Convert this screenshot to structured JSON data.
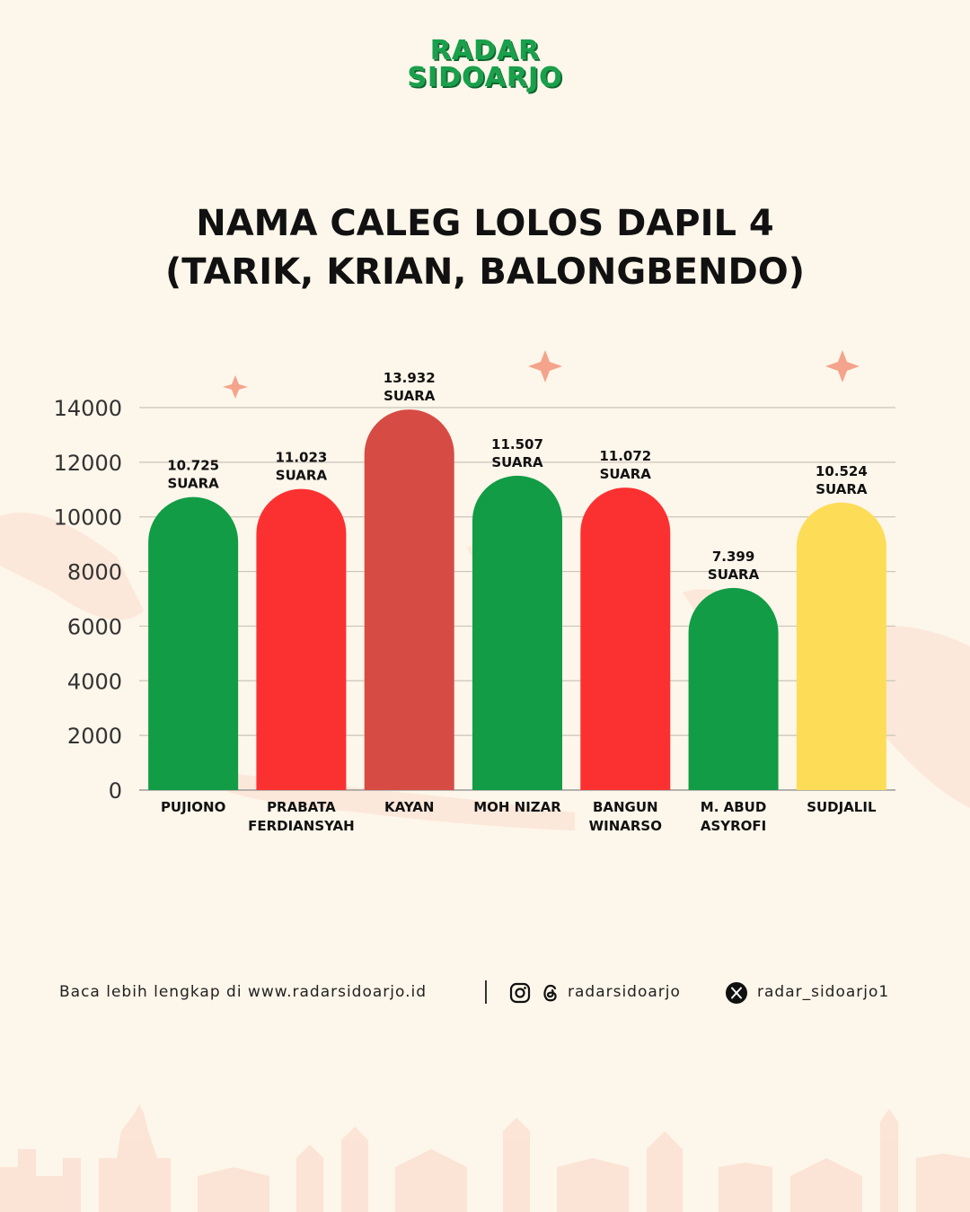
{
  "logo": {
    "line1": "RADAR",
    "line2": "SIDOARJO"
  },
  "title": {
    "line1": "NAMA CALEG LOLOS DAPIL 4",
    "line2": "(TARIK, KRIAN, BALONGBENDO)"
  },
  "chart_data": {
    "type": "bar",
    "categories": [
      [
        "PUJIONO"
      ],
      [
        "PRABATA",
        "FERDIANSYAH"
      ],
      [
        "KAYAN"
      ],
      [
        "MOH NIZAR"
      ],
      [
        "BANGUN",
        "WINARSO"
      ],
      [
        "M. ABUD",
        "ASYROFI"
      ],
      [
        "SUDJALIL"
      ]
    ],
    "values": [
      10725,
      11023,
      13932,
      11507,
      11072,
      7399,
      10524
    ],
    "data_labels": [
      [
        "10.725",
        "SUARA"
      ],
      [
        "11.023",
        "SUARA"
      ],
      [
        "13.932",
        "SUARA"
      ],
      [
        "11.507",
        "SUARA"
      ],
      [
        "11.072",
        "SUARA"
      ],
      [
        "7.399",
        "SUARA"
      ],
      [
        "10.524",
        "SUARA"
      ]
    ],
    "bar_colors": [
      "#119c45",
      "#fb3131",
      "#d74b45",
      "#119c45",
      "#fb3131",
      "#119c45",
      "#fddc58"
    ],
    "yticks": [
      "0",
      "2000",
      "4000",
      "6000",
      "8000",
      "10000",
      "12000",
      "14000"
    ],
    "ylim": [
      0,
      14000
    ],
    "grid": true
  },
  "footer": {
    "website_text": "Baca lebih lengkap di www.radarsidoarjo.id",
    "instagram_handle": "radarsidoarjo",
    "x_handle": "radar_sidoarjo1",
    "icons": [
      "instagram-icon",
      "threads-icon",
      "x-icon"
    ]
  }
}
